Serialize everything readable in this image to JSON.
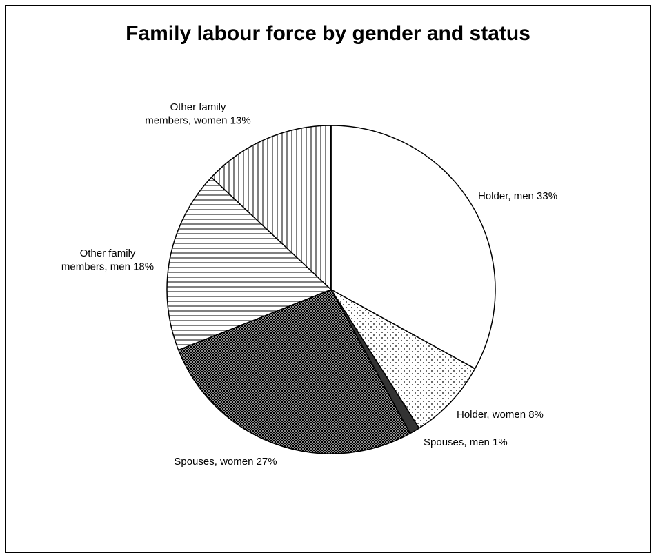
{
  "chart_data": {
    "type": "pie",
    "title": "Family labour force by gender and status",
    "slices": [
      {
        "label": "Holder, men 33%",
        "value": 33,
        "pattern": "white"
      },
      {
        "label": "Holder, women 8%",
        "value": 8,
        "pattern": "dots-sparse"
      },
      {
        "label": "Spouses, men 1%",
        "value": 1,
        "pattern": "dark"
      },
      {
        "label": "Spouses, women 27%",
        "value": 27,
        "pattern": "dots-dense"
      },
      {
        "label": "Other family members, men 18%",
        "value": 18,
        "pattern": "horizontal-lines"
      },
      {
        "label": "Other family members, women 13%",
        "value": 13,
        "pattern": "vertical-lines"
      }
    ],
    "legend": "none"
  }
}
